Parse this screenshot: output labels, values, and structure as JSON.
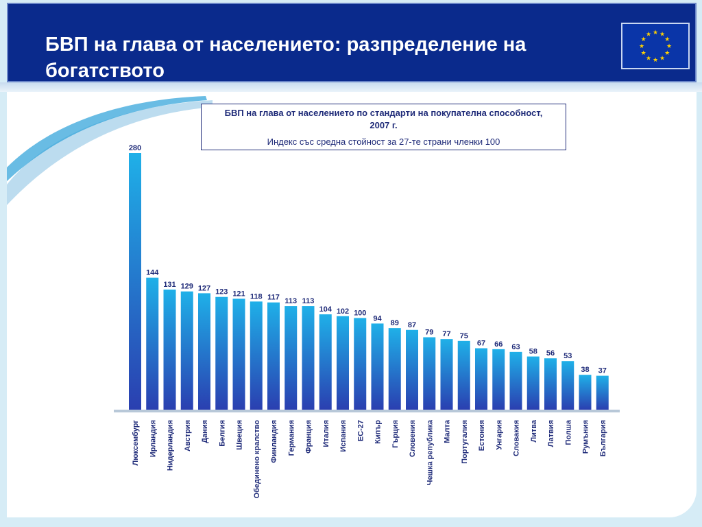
{
  "header": {
    "title": "БВП на глава от населението: разпределение на богатството"
  },
  "legend": {
    "title": "БВП на глава от населението по стандарти на покупателна способност, 2007 г.",
    "subtitle": "Индекс със средна стойност за 27-те страни членки 100"
  },
  "colors": {
    "header_bg": "#0a2a8c",
    "bar_top": "#1fb0e8",
    "bar_bottom": "#2a3fb0",
    "label_text": "#1e2a78",
    "flag_bg": "#0a35a8",
    "star": "#ffd200"
  },
  "flag_icon": "eu-flag-icon",
  "chart_data": {
    "type": "bar",
    "title": "",
    "xlabel": "",
    "ylabel": "",
    "ylim": [
      0,
      280
    ],
    "grid": false,
    "categories": [
      "Люксембург",
      "Ирландия",
      "Нидерландия",
      "Австрия",
      "Дания",
      "Белгия",
      "Швеция",
      "Обединено кралство",
      "Финландия",
      "Германия",
      "Франция",
      "Италия",
      "Испания",
      "ЕС-27",
      "Кипър",
      "Гърция",
      "Словения",
      "Чешка република",
      "Малта",
      "Португалия",
      "Естония",
      "Унгария",
      "Словакия",
      "Литва",
      "Латвия",
      "Полша",
      "Румъния",
      "България"
    ],
    "values": [
      280,
      144,
      131,
      129,
      127,
      123,
      121,
      118,
      117,
      113,
      113,
      104,
      102,
      100,
      94,
      89,
      87,
      79,
      77,
      75,
      67,
      66,
      63,
      58,
      56,
      53,
      38,
      37
    ]
  }
}
